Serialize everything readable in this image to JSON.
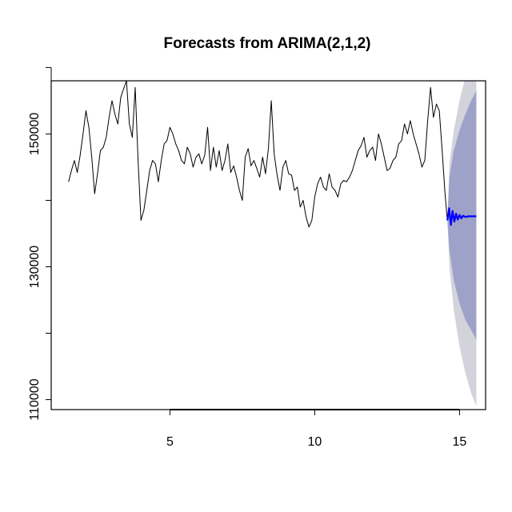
{
  "chart_data": {
    "type": "line",
    "title": "Forecasts from ARIMA(2,1,2)",
    "xlabel": "",
    "ylabel": "",
    "xlim": [
      0.9,
      15.9
    ],
    "ylim": [
      108500,
      158000
    ],
    "x_ticks": [
      5,
      10,
      15
    ],
    "x_tick_labels": [
      "5",
      "10",
      "15"
    ],
    "y_ticks": [
      110000,
      120000,
      130000,
      140000,
      150000,
      160000
    ],
    "y_tick_labels": [
      "110000",
      "130000",
      "150000"
    ],
    "y_labeled_ticks": [
      110000,
      130000,
      150000
    ],
    "colors": {
      "history": "#000000",
      "forecast": "#0000ff",
      "band_80": "#9ea1c8",
      "band_95": "#d3d3db"
    },
    "series": [
      {
        "role": "history",
        "x": [
          1.5,
          1.6,
          1.7,
          1.8,
          1.9,
          2.0,
          2.1,
          2.2,
          2.3,
          2.4,
          2.5,
          2.6,
          2.7,
          2.8,
          2.9,
          3.0,
          3.1,
          3.2,
          3.3,
          3.4,
          3.5,
          3.6,
          3.7,
          3.8,
          3.9,
          4.0,
          4.1,
          4.2,
          4.3,
          4.4,
          4.5,
          4.6,
          4.7,
          4.8,
          4.9,
          5.0,
          5.1,
          5.2,
          5.3,
          5.4,
          5.5,
          5.6,
          5.7,
          5.8,
          5.9,
          6.0,
          6.1,
          6.2,
          6.3,
          6.4,
          6.5,
          6.6,
          6.7,
          6.8,
          6.9,
          7.0,
          7.1,
          7.2,
          7.3,
          7.4,
          7.5,
          7.6,
          7.7,
          7.8,
          7.9,
          8.0,
          8.1,
          8.2,
          8.3,
          8.4,
          8.5,
          8.6,
          8.7,
          8.8,
          8.9,
          9.0,
          9.1,
          9.2,
          9.3,
          9.4,
          9.5,
          9.6,
          9.7,
          9.8,
          9.9,
          10.0,
          10.1,
          10.2,
          10.3,
          10.4,
          10.5,
          10.6,
          10.7,
          10.8,
          10.9,
          11.0,
          11.1,
          11.2,
          11.3,
          11.4,
          11.5,
          11.6,
          11.7,
          11.8,
          11.9,
          12.0,
          12.1,
          12.2,
          12.3,
          12.4,
          12.5,
          12.6,
          12.7,
          12.8,
          12.9,
          13.0,
          13.1,
          13.2,
          13.3,
          13.4,
          13.5,
          13.6,
          13.7,
          13.8,
          13.9,
          14.0,
          14.1,
          14.2,
          14.3,
          14.4,
          14.5,
          14.58
        ],
        "y": [
          142800,
          144500,
          146000,
          144200,
          146800,
          150000,
          153500,
          151000,
          146500,
          141000,
          144000,
          147500,
          148000,
          149500,
          152500,
          155000,
          153000,
          151500,
          155500,
          156800,
          158000,
          151500,
          149500,
          157000,
          146000,
          137000,
          138500,
          141500,
          144500,
          146000,
          145500,
          142800,
          146000,
          148500,
          149000,
          151000,
          150000,
          148500,
          147500,
          146000,
          145500,
          148000,
          147000,
          145000,
          146500,
          147000,
          145500,
          146800,
          151000,
          144500,
          148000,
          145000,
          147500,
          144500,
          146000,
          148500,
          144200,
          145200,
          143500,
          141500,
          140000,
          146500,
          147800,
          145200,
          146000,
          144800,
          143500,
          146500,
          144000,
          147800,
          155000,
          147000,
          143800,
          141500,
          145000,
          146000,
          144000,
          143800,
          141500,
          142000,
          139000,
          140000,
          137500,
          136000,
          137000,
          140500,
          142500,
          143500,
          142000,
          141500,
          144000,
          142000,
          141500,
          140500,
          142500,
          143000,
          142800,
          143500,
          144500,
          146000,
          147500,
          148200,
          149500,
          146500,
          147500,
          148000,
          146000,
          150000,
          148500,
          146500,
          144500,
          144800,
          146000,
          146500,
          148500,
          149000,
          151500,
          150000,
          152000,
          150000,
          148500,
          147000,
          145000,
          146000,
          152000,
          157000,
          152500,
          154500,
          153500,
          147500,
          141000,
          137000
        ]
      },
      {
        "role": "forecast",
        "x": [
          14.58,
          14.64,
          14.7,
          14.76,
          14.82,
          14.88,
          14.94,
          15.0,
          15.06,
          15.12,
          15.2,
          15.3,
          15.45,
          15.58
        ],
        "y": [
          137000,
          138800,
          136300,
          138400,
          136800,
          138000,
          137100,
          137800,
          137300,
          137700,
          137500,
          137600,
          137600,
          137600
        ]
      }
    ],
    "bands": [
      {
        "level": "95",
        "x": [
          14.58,
          14.65,
          14.8,
          15.0,
          15.2,
          15.4,
          15.58
        ],
        "lower": [
          137000,
          130000,
          123500,
          118000,
          114000,
          111000,
          109000
        ],
        "upper": [
          137000,
          145500,
          150500,
          155000,
          158500,
          161500,
          164000
        ]
      },
      {
        "level": "80",
        "x": [
          14.58,
          14.65,
          14.8,
          15.0,
          15.2,
          15.4,
          15.58
        ],
        "lower": [
          137000,
          132500,
          128000,
          124500,
          122000,
          120500,
          119000
        ],
        "upper": [
          137000,
          143500,
          147500,
          150500,
          153000,
          155000,
          156500
        ]
      }
    ]
  }
}
